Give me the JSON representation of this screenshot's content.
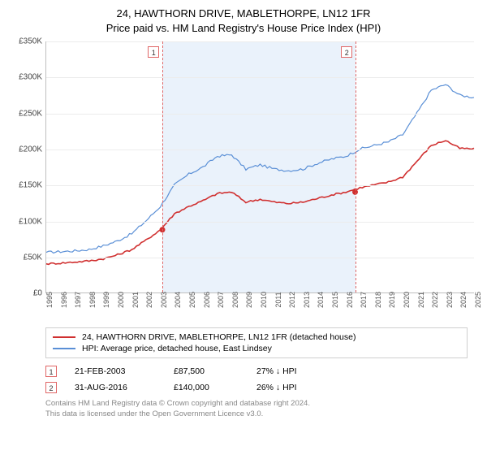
{
  "title": {
    "line1": "24, HAWTHORN DRIVE, MABLETHORPE, LN12 1FR",
    "line2": "Price paid vs. HM Land Registry's House Price Index (HPI)",
    "fontsize": 13
  },
  "chart": {
    "type": "line",
    "background_color": "#ffffff",
    "grid_color": "#ececec",
    "axis_color": "#bfbfbf",
    "shade_color": "#eaf2fb",
    "x": {
      "min": 1995,
      "max": 2025,
      "tick_step": 1,
      "labels": [
        "1995",
        "1996",
        "1997",
        "1998",
        "1999",
        "2000",
        "2001",
        "2002",
        "2003",
        "2004",
        "2005",
        "2006",
        "2007",
        "2008",
        "2009",
        "2010",
        "2011",
        "2012",
        "2013",
        "2014",
        "2015",
        "2016",
        "2017",
        "2018",
        "2019",
        "2020",
        "2021",
        "2022",
        "2023",
        "2024",
        "2025"
      ],
      "label_fontsize": 9
    },
    "y": {
      "min": 0,
      "max": 350000,
      "tick_step": 50000,
      "labels": [
        "£0",
        "£50K",
        "£100K",
        "£150K",
        "£200K",
        "£250K",
        "£300K",
        "£350K"
      ],
      "label_fontsize": 10
    },
    "shade_range": {
      "from": 2003.14,
      "to": 2016.66
    },
    "vlines": [
      {
        "x": 2003.14,
        "badge": "1",
        "color": "#e06666"
      },
      {
        "x": 2016.66,
        "badge": "2",
        "color": "#e06666"
      }
    ],
    "series": [
      {
        "id": "hpi",
        "label": "HPI: Average price, detached house, East Lindsey",
        "color": "#5a8fd6",
        "line_width": 1.2,
        "points": [
          [
            1995,
            56000
          ],
          [
            1996,
            57000
          ],
          [
            1997,
            58000
          ],
          [
            1998,
            60000
          ],
          [
            1999,
            65000
          ],
          [
            2000,
            72000
          ],
          [
            2001,
            82000
          ],
          [
            2002,
            100000
          ],
          [
            2003,
            120000
          ],
          [
            2004,
            150000
          ],
          [
            2005,
            165000
          ],
          [
            2006,
            175000
          ],
          [
            2007,
            190000
          ],
          [
            2008,
            192000
          ],
          [
            2009,
            172000
          ],
          [
            2010,
            178000
          ],
          [
            2011,
            172000
          ],
          [
            2012,
            170000
          ],
          [
            2013,
            172000
          ],
          [
            2014,
            180000
          ],
          [
            2015,
            186000
          ],
          [
            2016,
            190000
          ],
          [
            2017,
            200000
          ],
          [
            2018,
            205000
          ],
          [
            2019,
            210000
          ],
          [
            2020,
            220000
          ],
          [
            2021,
            250000
          ],
          [
            2022,
            282000
          ],
          [
            2023,
            290000
          ],
          [
            2024,
            275000
          ],
          [
            2025,
            272000
          ]
        ]
      },
      {
        "id": "price",
        "label": "24, HAWTHORN DRIVE, MABLETHORPE, LN12 1FR (detached house)",
        "color": "#d03030",
        "line_width": 1.6,
        "points": [
          [
            1995,
            40000
          ],
          [
            1996,
            41000
          ],
          [
            1997,
            42500
          ],
          [
            1998,
            44000
          ],
          [
            1999,
            47000
          ],
          [
            2000,
            52500
          ],
          [
            2001,
            60000
          ],
          [
            2002,
            73000
          ],
          [
            2003,
            87500
          ],
          [
            2004,
            110000
          ],
          [
            2005,
            120000
          ],
          [
            2006,
            128000
          ],
          [
            2007,
            138000
          ],
          [
            2008,
            140000
          ],
          [
            2009,
            126000
          ],
          [
            2010,
            130000
          ],
          [
            2011,
            126000
          ],
          [
            2012,
            124000
          ],
          [
            2013,
            126000
          ],
          [
            2014,
            131000
          ],
          [
            2015,
            136000
          ],
          [
            2016,
            140000
          ],
          [
            2017,
            146000
          ],
          [
            2018,
            150000
          ],
          [
            2019,
            154000
          ],
          [
            2020,
            161000
          ],
          [
            2021,
            183000
          ],
          [
            2022,
            205000
          ],
          [
            2023,
            212000
          ],
          [
            2024,
            201000
          ],
          [
            2025,
            200000
          ]
        ]
      }
    ],
    "markers": [
      {
        "series": "price",
        "x": 2003.14,
        "y": 87500,
        "color": "#d03030",
        "radius": 3.5
      },
      {
        "series": "price",
        "x": 2016.66,
        "y": 140000,
        "color": "#d03030",
        "radius": 3.5
      }
    ]
  },
  "legend": {
    "items": [
      {
        "color": "#d03030",
        "label": "24, HAWTHORN DRIVE, MABLETHORPE, LN12 1FR (detached house)"
      },
      {
        "color": "#5a8fd6",
        "label": "HPI: Average price, detached house, East Lindsey"
      }
    ],
    "fontsize": 10.5,
    "border_color": "#cfcfcf"
  },
  "marker_rows": [
    {
      "badge": "1",
      "date": "21-FEB-2003",
      "price": "£87,500",
      "rel": "27% ↓ HPI"
    },
    {
      "badge": "2",
      "date": "31-AUG-2016",
      "price": "£140,000",
      "rel": "26% ↓ HPI"
    }
  ],
  "footer": {
    "line1": "Contains HM Land Registry data © Crown copyright and database right 2024.",
    "line2": "This data is licensed under the Open Government Licence v3.0.",
    "color": "#888888",
    "fontsize": 9.5
  }
}
